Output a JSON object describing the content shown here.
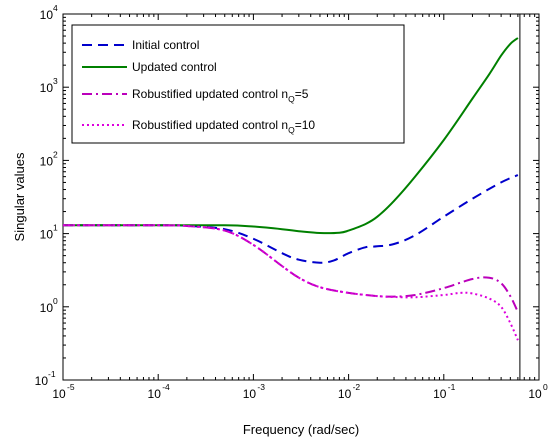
{
  "chart_data": {
    "type": "line",
    "xlabel": "Frequency (rad/sec)",
    "ylabel": "Singular values",
    "x_scale": "log",
    "y_scale": "log",
    "xlim": [
      1e-05,
      1
    ],
    "ylim": [
      0.1,
      10000
    ],
    "grid": false,
    "legend_position": "top-left",
    "x_ticks": [
      {
        "base": "10",
        "exp": "-5"
      },
      {
        "base": "10",
        "exp": "-4"
      },
      {
        "base": "10",
        "exp": "-3"
      },
      {
        "base": "10",
        "exp": "-2"
      },
      {
        "base": "10",
        "exp": "-1"
      },
      {
        "base": "10",
        "exp": "0"
      }
    ],
    "y_ticks": [
      {
        "base": "10",
        "exp": "-1"
      },
      {
        "base": "10",
        "exp": "0"
      },
      {
        "base": "10",
        "exp": "1"
      },
      {
        "base": "10",
        "exp": "2"
      },
      {
        "base": "10",
        "exp": "3"
      },
      {
        "base": "10",
        "exp": "4"
      }
    ],
    "vertical_line_x": 0.63,
    "series": [
      {
        "name": "Initial control",
        "legend_parts": [
          "Initial control"
        ],
        "color": "#0000cc",
        "dash": "dashed",
        "x": [
          1e-05,
          0.0001,
          0.0002,
          0.0005,
          0.001,
          0.002,
          0.003,
          0.005,
          0.007,
          0.01,
          0.015,
          0.02,
          0.03,
          0.05,
          0.1,
          0.2,
          0.4,
          0.6
        ],
        "y": [
          13,
          13,
          12.8,
          11.5,
          8.5,
          5.4,
          4.4,
          4.0,
          4.3,
          5.4,
          6.5,
          6.7,
          7.2,
          9.5,
          17,
          30,
          50,
          63
        ]
      },
      {
        "name": "Updated control",
        "legend_parts": [
          "Updated control"
        ],
        "color": "#008000",
        "dash": "solid",
        "x": [
          1e-05,
          0.0001,
          0.0005,
          0.001,
          0.002,
          0.003,
          0.005,
          0.008,
          0.01,
          0.015,
          0.02,
          0.03,
          0.05,
          0.1,
          0.2,
          0.3,
          0.4,
          0.5,
          0.6
        ],
        "y": [
          13,
          13,
          13,
          12.5,
          11.5,
          10.8,
          10.2,
          10.3,
          11,
          13.5,
          17,
          28,
          60,
          190,
          700,
          1500,
          2700,
          3900,
          4700
        ]
      },
      {
        "name": "Robustified updated control n_Q=5",
        "legend_parts": [
          "Robustified updated control n",
          "Q",
          "=5"
        ],
        "color": "#bb00bb",
        "dash": "dashdot",
        "x": [
          1e-05,
          0.0001,
          0.0002,
          0.0005,
          0.001,
          0.002,
          0.003,
          0.005,
          0.01,
          0.02,
          0.03,
          0.05,
          0.1,
          0.2,
          0.3,
          0.4,
          0.5,
          0.6
        ],
        "y": [
          13,
          13,
          12.7,
          11,
          7.0,
          3.6,
          2.5,
          1.85,
          1.55,
          1.4,
          1.38,
          1.45,
          1.8,
          2.4,
          2.5,
          2.1,
          1.4,
          0.85
        ]
      },
      {
        "name": "Robustified updated control n_Q=10",
        "legend_parts": [
          "Robustified updated control n",
          "Q",
          "=10"
        ],
        "color": "#dd00dd",
        "dash": "dotted",
        "x": [
          1e-05,
          0.0001,
          0.0002,
          0.0005,
          0.001,
          0.002,
          0.003,
          0.005,
          0.01,
          0.02,
          0.03,
          0.05,
          0.1,
          0.15,
          0.2,
          0.3,
          0.4,
          0.5,
          0.6
        ],
        "y": [
          13,
          13,
          12.7,
          11,
          7.0,
          3.6,
          2.5,
          1.85,
          1.55,
          1.4,
          1.36,
          1.35,
          1.45,
          1.55,
          1.52,
          1.3,
          1.0,
          0.6,
          0.35
        ]
      }
    ]
  }
}
